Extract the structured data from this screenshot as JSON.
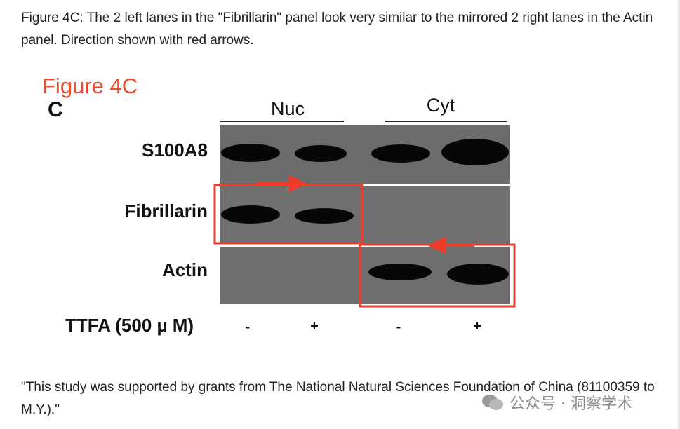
{
  "paragraphs": [
    "Figure 4C: The 2 left lanes in the \"Fibrillarin\" panel look very similar to the mirrored 2 right lanes in the Actin panel. Direction shown with red arrows.",
    "\"This study was supported by grants from The National Natural Sciences Foundation of China (81100359 to M.Y.).\""
  ],
  "figure": {
    "label": "Figure 4C",
    "panel_letter": "C",
    "groups": [
      "Nuc",
      "Cyt"
    ],
    "rows": [
      "S100A8",
      "Fibrillarin",
      "Actin"
    ],
    "treatment_label": "TTFA (500 µ M)",
    "treatment_signs": [
      "-",
      "+",
      "-",
      "+"
    ]
  },
  "watermark": "公众号 · 洞察学术"
}
